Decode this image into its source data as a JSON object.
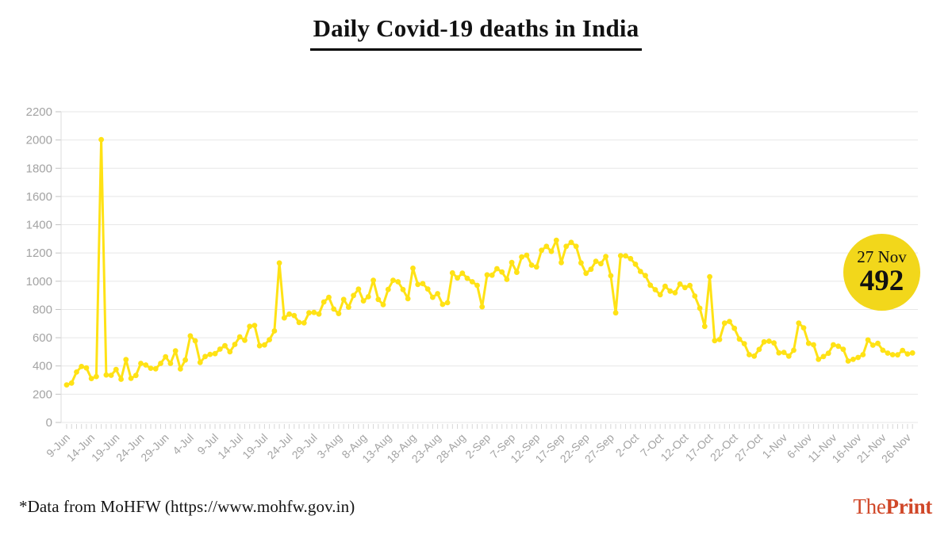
{
  "header": {
    "title": "Daily Covid-19 deaths in India"
  },
  "chart_data": {
    "type": "line",
    "title": "Daily Covid-19 deaths in India",
    "series_name": "Daily Covid-19 deaths",
    "line_color": "#ffe215",
    "grid": true,
    "xlabel": "",
    "ylabel": "",
    "ylim": [
      0,
      2200
    ],
    "y_ticks": [
      0,
      200,
      400,
      600,
      800,
      1000,
      1200,
      1400,
      1600,
      1800,
      2000,
      2200
    ],
    "x_tick_labels": [
      "9-Jun",
      "14-Jun",
      "19-Jun",
      "24-Jun",
      "29-Jun",
      "4-Jul",
      "9-Jul",
      "14-Jul",
      "19-Jul",
      "24-Jul",
      "29-Jul",
      "3-Aug",
      "8-Aug",
      "13-Aug",
      "18-Aug",
      "23-Aug",
      "28-Aug",
      "2-Sep",
      "7-Sep",
      "12-Sep",
      "17-Sep",
      "22-Sep",
      "27-Sep",
      "2-Oct",
      "7-Oct",
      "12-Oct",
      "17-Oct",
      "22-Oct",
      "27-Oct",
      "1-Nov",
      "6-Nov",
      "11-Nov",
      "16-Nov",
      "21-Nov",
      "26-Nov"
    ],
    "x_label_every_days": 5,
    "values": [
      266,
      279,
      357,
      396,
      386,
      311,
      325,
      2003,
      336,
      334,
      375,
      306,
      445,
      312,
      333,
      418,
      407,
      384,
      380,
      418,
      465,
      418,
      507,
      379,
      442,
      613,
      578,
      425,
      467,
      482,
      487,
      519,
      543,
      500,
      553,
      606,
      582,
      680,
      687,
      543,
      549,
      586,
      648,
      1129,
      740,
      767,
      757,
      708,
      705,
      776,
      779,
      768,
      853,
      886,
      803,
      771,
      871,
      816,
      899,
      944,
      861,
      890,
      1007,
      871,
      834,
      942,
      1007,
      996,
      941,
      876,
      1092,
      977,
      983,
      945,
      886,
      912,
      836,
      848,
      1059,
      1023,
      1057,
      1021,
      996,
      971,
      819,
      1045,
      1043,
      1089,
      1065,
      1013,
      1133,
      1063,
      1172,
      1184,
      1114,
      1101,
      1219,
      1247,
      1211,
      1290,
      1132,
      1247,
      1275,
      1247,
      1130,
      1056,
      1085,
      1141,
      1124,
      1175,
      1039,
      776,
      1181,
      1179,
      1160,
      1120,
      1069,
      1040,
      972,
      940,
      904,
      964,
      930,
      918,
      980,
      955,
      970,
      895,
      809,
      680,
      1032,
      579,
      587,
      703,
      715,
      667,
      590,
      558,
      480,
      470,
      517,
      571,
      575,
      563,
      493,
      496,
      470,
      511,
      704,
      670,
      560,
      550,
      447,
      467,
      490,
      550,
      540,
      518,
      435,
      447,
      460,
      480,
      584,
      547,
      560,
      511,
      491,
      480,
      479,
      510,
      485,
      492
    ],
    "last_point": {
      "label": "27 Nov",
      "value": 492
    },
    "colors": {
      "gridline": "#e7e7e7",
      "axis_tick": "#c2c2c2",
      "axis_label": "#a3a3a3"
    }
  },
  "callout": {
    "date": "27 Nov",
    "value": "492",
    "background": "#f2d71b"
  },
  "footer": {
    "source": "*Data from MoHFW (https://www.mohfw.gov.in)",
    "logo": {
      "part1": "The",
      "part2": "Print",
      "color": "#d04728"
    }
  }
}
